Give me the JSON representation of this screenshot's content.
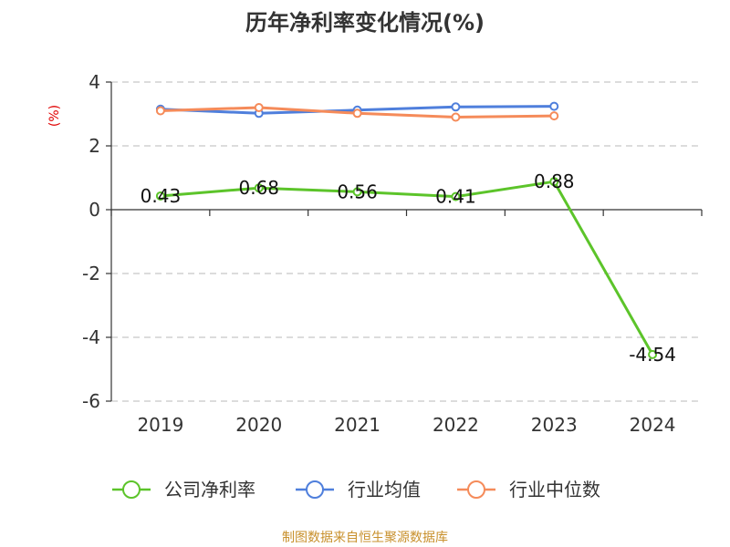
{
  "chart_data": {
    "type": "line",
    "title": "历年净利率变化情况(%)",
    "unit_label": "(%)",
    "categories": [
      "2019",
      "2020",
      "2021",
      "2022",
      "2023",
      "2024"
    ],
    "ylim": [
      -6,
      4
    ],
    "yticks": [
      4,
      2,
      0,
      -2,
      -4,
      -6
    ],
    "grid": "horizontal dashed",
    "legend_position": "bottom",
    "series": [
      {
        "name": "公司净利率",
        "color": "#5cc42a",
        "values": [
          0.43,
          0.68,
          0.56,
          0.41,
          0.88,
          -4.54
        ],
        "labels": [
          "0.43",
          "0.68",
          "0.56",
          "0.41",
          "0.88",
          "-4.54"
        ]
      },
      {
        "name": "行业均值",
        "color": "#4f7fdc",
        "values": [
          3.15,
          3.02,
          3.12,
          3.22,
          3.24,
          null
        ]
      },
      {
        "name": "行业中位数",
        "color": "#f58b5a",
        "values": [
          3.1,
          3.2,
          3.02,
          2.9,
          2.94,
          null
        ]
      }
    ]
  },
  "footer": {
    "source": "制图数据来自恒生聚源数据库"
  }
}
